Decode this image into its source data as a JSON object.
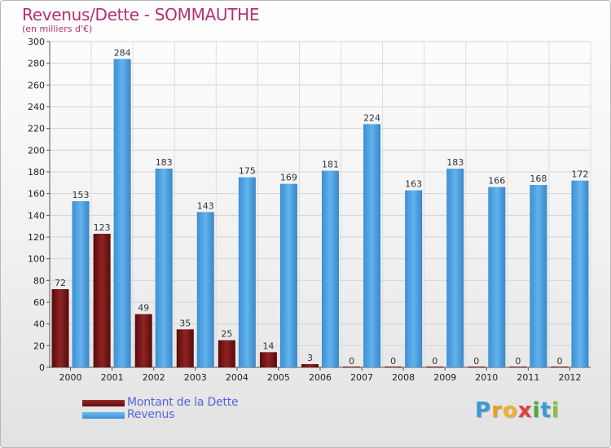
{
  "title": "Revenus/Dette - SOMMAUTHE",
  "subtitle": "(en milliers d'€)",
  "brand": {
    "letters": [
      "P",
      "r",
      "o",
      "x",
      "i",
      "t",
      "i"
    ],
    "colors": [
      "#3a9ad9",
      "#e8a020",
      "#f0b030",
      "#e0403a",
      "#4aaa40",
      "#3a9ad9",
      "#8cc040"
    ]
  },
  "chart_data": {
    "type": "bar",
    "title": "Revenus/Dette - SOMMAUTHE",
    "subtitle": "(en milliers d'€)",
    "categories": [
      "2000",
      "2001",
      "2002",
      "2003",
      "2004",
      "2005",
      "2006",
      "2007",
      "2008",
      "2009",
      "2010",
      "2011",
      "2012"
    ],
    "series": [
      {
        "name": "Montant de la Dette",
        "color": "#7a1414",
        "values": [
          72,
          123,
          49,
          35,
          25,
          14,
          3,
          0,
          0,
          0,
          0,
          0,
          0
        ]
      },
      {
        "name": "Revenus",
        "color": "#4da3e4",
        "values": [
          153,
          284,
          183,
          143,
          175,
          169,
          181,
          224,
          163,
          183,
          166,
          168,
          172
        ]
      }
    ],
    "ylim": [
      0,
      300
    ],
    "yticks": [
      0,
      20,
      40,
      60,
      80,
      100,
      120,
      140,
      160,
      180,
      200,
      220,
      240,
      260,
      280,
      300
    ],
    "grid": true,
    "legend_position": "bottom-left"
  }
}
